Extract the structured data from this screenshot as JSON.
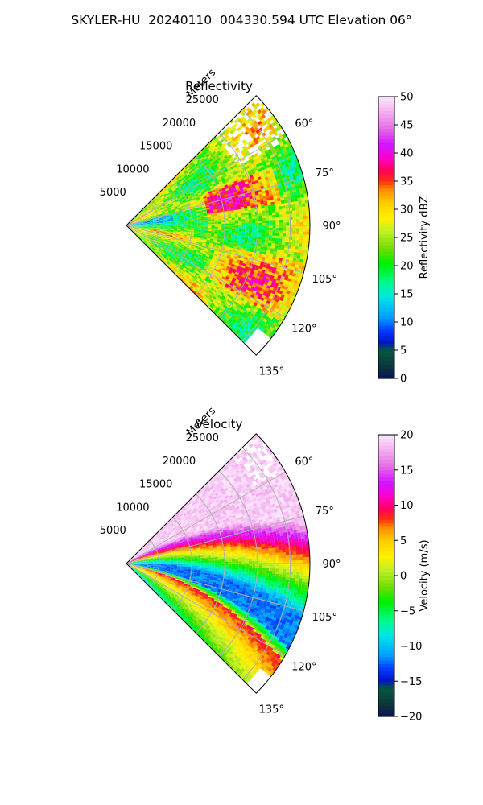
{
  "title": "SKYLER-HU  20240110  004330.594 UTC Elevation 06°",
  "chart_data": [
    {
      "type": "heatmap",
      "projection": "polar-sector",
      "title": "Reflectivity",
      "range_label": "Meters",
      "range_ticks": [
        5000,
        10000,
        15000,
        20000,
        25000
      ],
      "range_tick_labels": [
        "5000",
        "10000",
        "15000",
        "20000",
        "25000"
      ],
      "range_max": 28000,
      "azimuth_range": [
        45,
        135
      ],
      "azimuth_ticks": [
        60,
        75,
        90,
        105,
        120,
        135
      ],
      "azimuth_tick_labels": [
        "60°",
        "75°",
        "90°",
        "105°",
        "120°",
        "135°"
      ],
      "grid": true,
      "colorbar": {
        "label": "Reflectivity dBZ",
        "min": 0,
        "max": 50,
        "ticks": [
          0,
          5,
          10,
          15,
          20,
          25,
          30,
          35,
          40,
          45,
          50
        ],
        "tick_labels": [
          "0",
          "5",
          "10",
          "15",
          "20",
          "25",
          "30",
          "35",
          "40",
          "45",
          "50"
        ],
        "colormap": "pyart_HomeyerRainbow"
      },
      "field_pattern": "mostly 22-32 dBZ with cells up to ~38 dBZ; echo-free gaps near the 60° edge at long range"
    },
    {
      "type": "heatmap",
      "projection": "polar-sector",
      "title": "Velocity",
      "range_label": "Meters",
      "range_ticks": [
        5000,
        10000,
        15000,
        20000,
        25000
      ],
      "range_tick_labels": [
        "5000",
        "10000",
        "15000",
        "20000",
        "25000"
      ],
      "range_max": 28000,
      "azimuth_range": [
        45,
        135
      ],
      "azimuth_ticks": [
        60,
        75,
        90,
        105,
        120,
        135
      ],
      "azimuth_tick_labels": [
        "60°",
        "75°",
        "90°",
        "105°",
        "120°",
        "135°"
      ],
      "grid": true,
      "colorbar": {
        "label": "Velocity (m/s)",
        "min": -20,
        "max": 20,
        "ticks": [
          -20,
          -15,
          -10,
          -5,
          0,
          5,
          10,
          15,
          20
        ],
        "tick_labels": [
          "−20",
          "−15",
          "−10",
          "−5",
          "0",
          "5",
          "10",
          "15",
          "20"
        ],
        "colormap": "pyart_HomeyerRainbow"
      },
      "field_pattern": "positive velocities (up to ~+18 m/s) at the 45-75° edge, near zero around 80-90°, a negative band (~-12 m/s) curving from 93° near the radar to ~112° at far range, with a folded/positive strip near 120-130°"
    }
  ]
}
